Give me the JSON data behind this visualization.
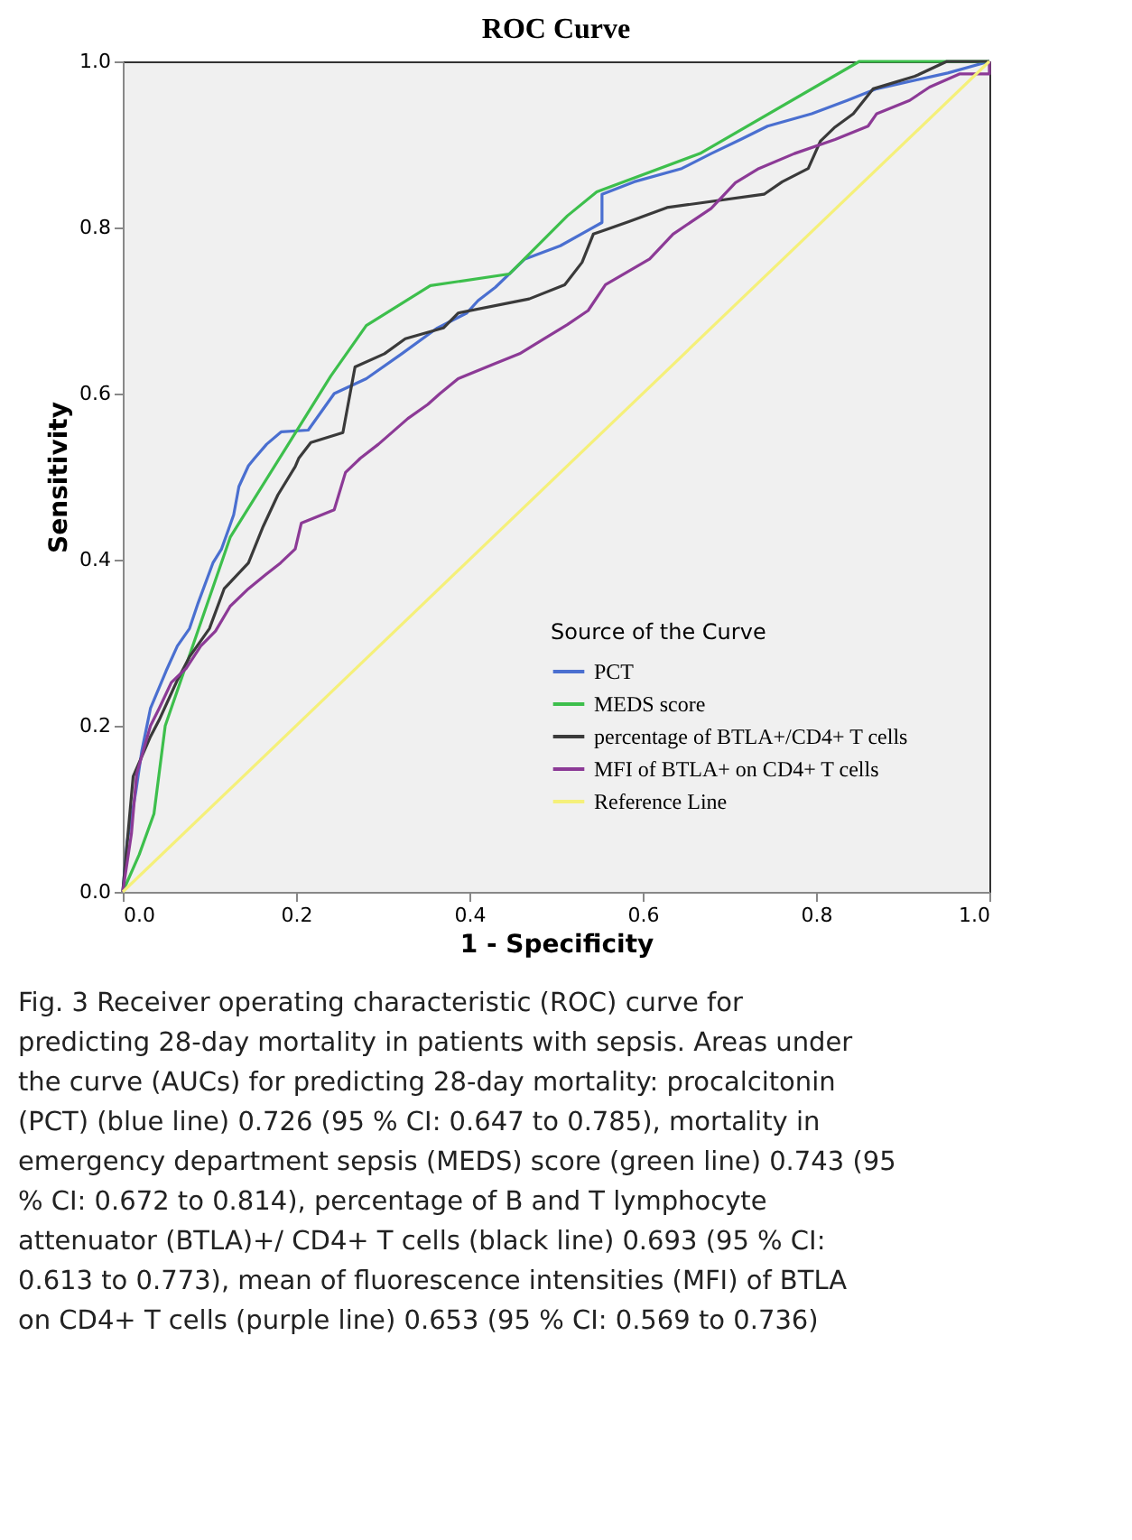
{
  "chart_data": {
    "type": "line",
    "title": "ROC Curve",
    "xlabel": "1 - Specificity",
    "ylabel": "Sensitivity",
    "legend_title": "Source of the Curve",
    "legend": "bottom right",
    "grid": false,
    "marker": "none",
    "line_style": "solid",
    "xlim": [
      0,
      1
    ],
    "ylim": [
      0,
      1
    ],
    "xticks": [
      {
        "value": 0,
        "label": "0.0"
      },
      {
        "value": 0.2,
        "label": "0.2"
      },
      {
        "value": 0.4,
        "label": "0.4"
      },
      {
        "value": 0.6,
        "label": "0.6"
      },
      {
        "value": 0.8,
        "label": "0.8"
      },
      {
        "value": 1,
        "label": "1.0"
      }
    ],
    "yticks": [
      {
        "value": 0,
        "label": "0.0"
      },
      {
        "value": 0.2,
        "label": "0.2"
      },
      {
        "value": 0.4,
        "label": "0.4"
      },
      {
        "value": 0.6,
        "label": "0.6"
      },
      {
        "value": 0.8,
        "label": "0.8"
      },
      {
        "value": 1,
        "label": "1.0"
      }
    ],
    "series": [
      {
        "name": "PCT",
        "color": "#4a6fd0",
        "x": [
          0,
          0.005,
          0.015,
          0.022,
          0.032,
          0.05,
          0.063,
          0.077,
          0.087,
          0.104,
          0.114,
          0.128,
          0.134,
          0.145,
          0.152,
          0.166,
          0.183,
          0.214,
          0.244,
          0.281,
          0.322,
          0.363,
          0.397,
          0.41,
          0.43,
          0.464,
          0.505,
          0.553,
          0.553,
          0.59,
          0.645,
          0.679,
          0.713,
          0.744,
          0.795,
          0.836,
          0.87,
          0.952,
          1
        ],
        "values": [
          0,
          0.06,
          0.12,
          0.17,
          0.221,
          0.266,
          0.296,
          0.317,
          0.348,
          0.396,
          0.413,
          0.454,
          0.488,
          0.513,
          0.522,
          0.539,
          0.554,
          0.556,
          0.6,
          0.618,
          0.648,
          0.679,
          0.697,
          0.712,
          0.728,
          0.762,
          0.778,
          0.806,
          0.84,
          0.855,
          0.871,
          0.889,
          0.906,
          0.922,
          0.937,
          0.953,
          0.967,
          0.986,
          1
        ]
      },
      {
        "name": "MEDS score",
        "color": "#3dbf4c",
        "x": [
          0,
          0.019,
          0.036,
          0.049,
          0.083,
          0.124,
          0.185,
          0.24,
          0.281,
          0.355,
          0.446,
          0.513,
          0.547,
          0.666,
          0.85,
          1
        ],
        "values": [
          0,
          0.045,
          0.094,
          0.2,
          0.303,
          0.427,
          0.529,
          0.621,
          0.682,
          0.73,
          0.744,
          0.814,
          0.843,
          0.889,
          1,
          1
        ]
      },
      {
        "name": "percentage of BTLA+/CD4+ T cells",
        "color": "#3a3a3a",
        "x": [
          0,
          0.012,
          0.032,
          0.042,
          0.063,
          0.077,
          0.1,
          0.117,
          0.145,
          0.162,
          0.179,
          0.199,
          0.203,
          0.217,
          0.254,
          0.268,
          0.302,
          0.326,
          0.37,
          0.387,
          0.469,
          0.51,
          0.53,
          0.543,
          0.584,
          0.628,
          0.74,
          0.761,
          0.791,
          0.805,
          0.822,
          0.843,
          0.866,
          0.914,
          0.951,
          1
        ],
        "values": [
          0,
          0.139,
          0.187,
          0.207,
          0.255,
          0.283,
          0.317,
          0.365,
          0.396,
          0.44,
          0.478,
          0.512,
          0.522,
          0.541,
          0.553,
          0.632,
          0.648,
          0.666,
          0.679,
          0.697,
          0.714,
          0.731,
          0.758,
          0.792,
          0.807,
          0.824,
          0.84,
          0.855,
          0.871,
          0.904,
          0.921,
          0.937,
          0.967,
          0.982,
          1,
          1
        ]
      },
      {
        "name": "MFI of BTLA+ on CD4+ T cells",
        "color": "#8c3a96",
        "x": [
          0,
          0.01,
          0.016,
          0.032,
          0.042,
          0.056,
          0.073,
          0.09,
          0.107,
          0.124,
          0.145,
          0.165,
          0.182,
          0.199,
          0.206,
          0.244,
          0.257,
          0.274,
          0.295,
          0.329,
          0.352,
          0.366,
          0.387,
          0.427,
          0.458,
          0.486,
          0.513,
          0.537,
          0.557,
          0.608,
          0.635,
          0.679,
          0.707,
          0.734,
          0.775,
          0.822,
          0.86,
          0.87,
          0.908,
          0.931,
          0.966,
          1,
          1
        ],
        "values": [
          0,
          0.07,
          0.142,
          0.2,
          0.221,
          0.252,
          0.269,
          0.296,
          0.314,
          0.344,
          0.365,
          0.382,
          0.396,
          0.413,
          0.444,
          0.46,
          0.505,
          0.522,
          0.539,
          0.57,
          0.587,
          0.6,
          0.618,
          0.635,
          0.648,
          0.666,
          0.683,
          0.7,
          0.731,
          0.762,
          0.792,
          0.823,
          0.854,
          0.871,
          0.889,
          0.906,
          0.922,
          0.937,
          0.953,
          0.969,
          0.985,
          0.985,
          1
        ]
      },
      {
        "name": "Reference Line",
        "color": "#f5f07a",
        "x": [
          0,
          1
        ],
        "values": [
          0,
          1
        ]
      }
    ],
    "annotations": [
      "Fig. 3 Receiver operating characteristic (ROC) curve for predicting 28-day mortality in patients with sepsis. Areas under the curve (AUCs) for predicting 28-day mortality: procalcitonin (PCT) (blue line) 0.726 (95 % CI: 0.647 to 0.785), mortality in emergency department sepsis (MEDS) score (green line) 0.743 (95 % CI: 0.672 to 0.814), percentage of B and T lymphocyte attenuator (BTLA)+/ CD4+ T cells (black line) 0.693 (95 % CI: 0.613 to 0.773), mean of fluorescence intensities (MFI) of BTLA on CD4+ T cells (purple line) 0.653 (95 % CI: 0.569 to 0.736)"
    ]
  }
}
